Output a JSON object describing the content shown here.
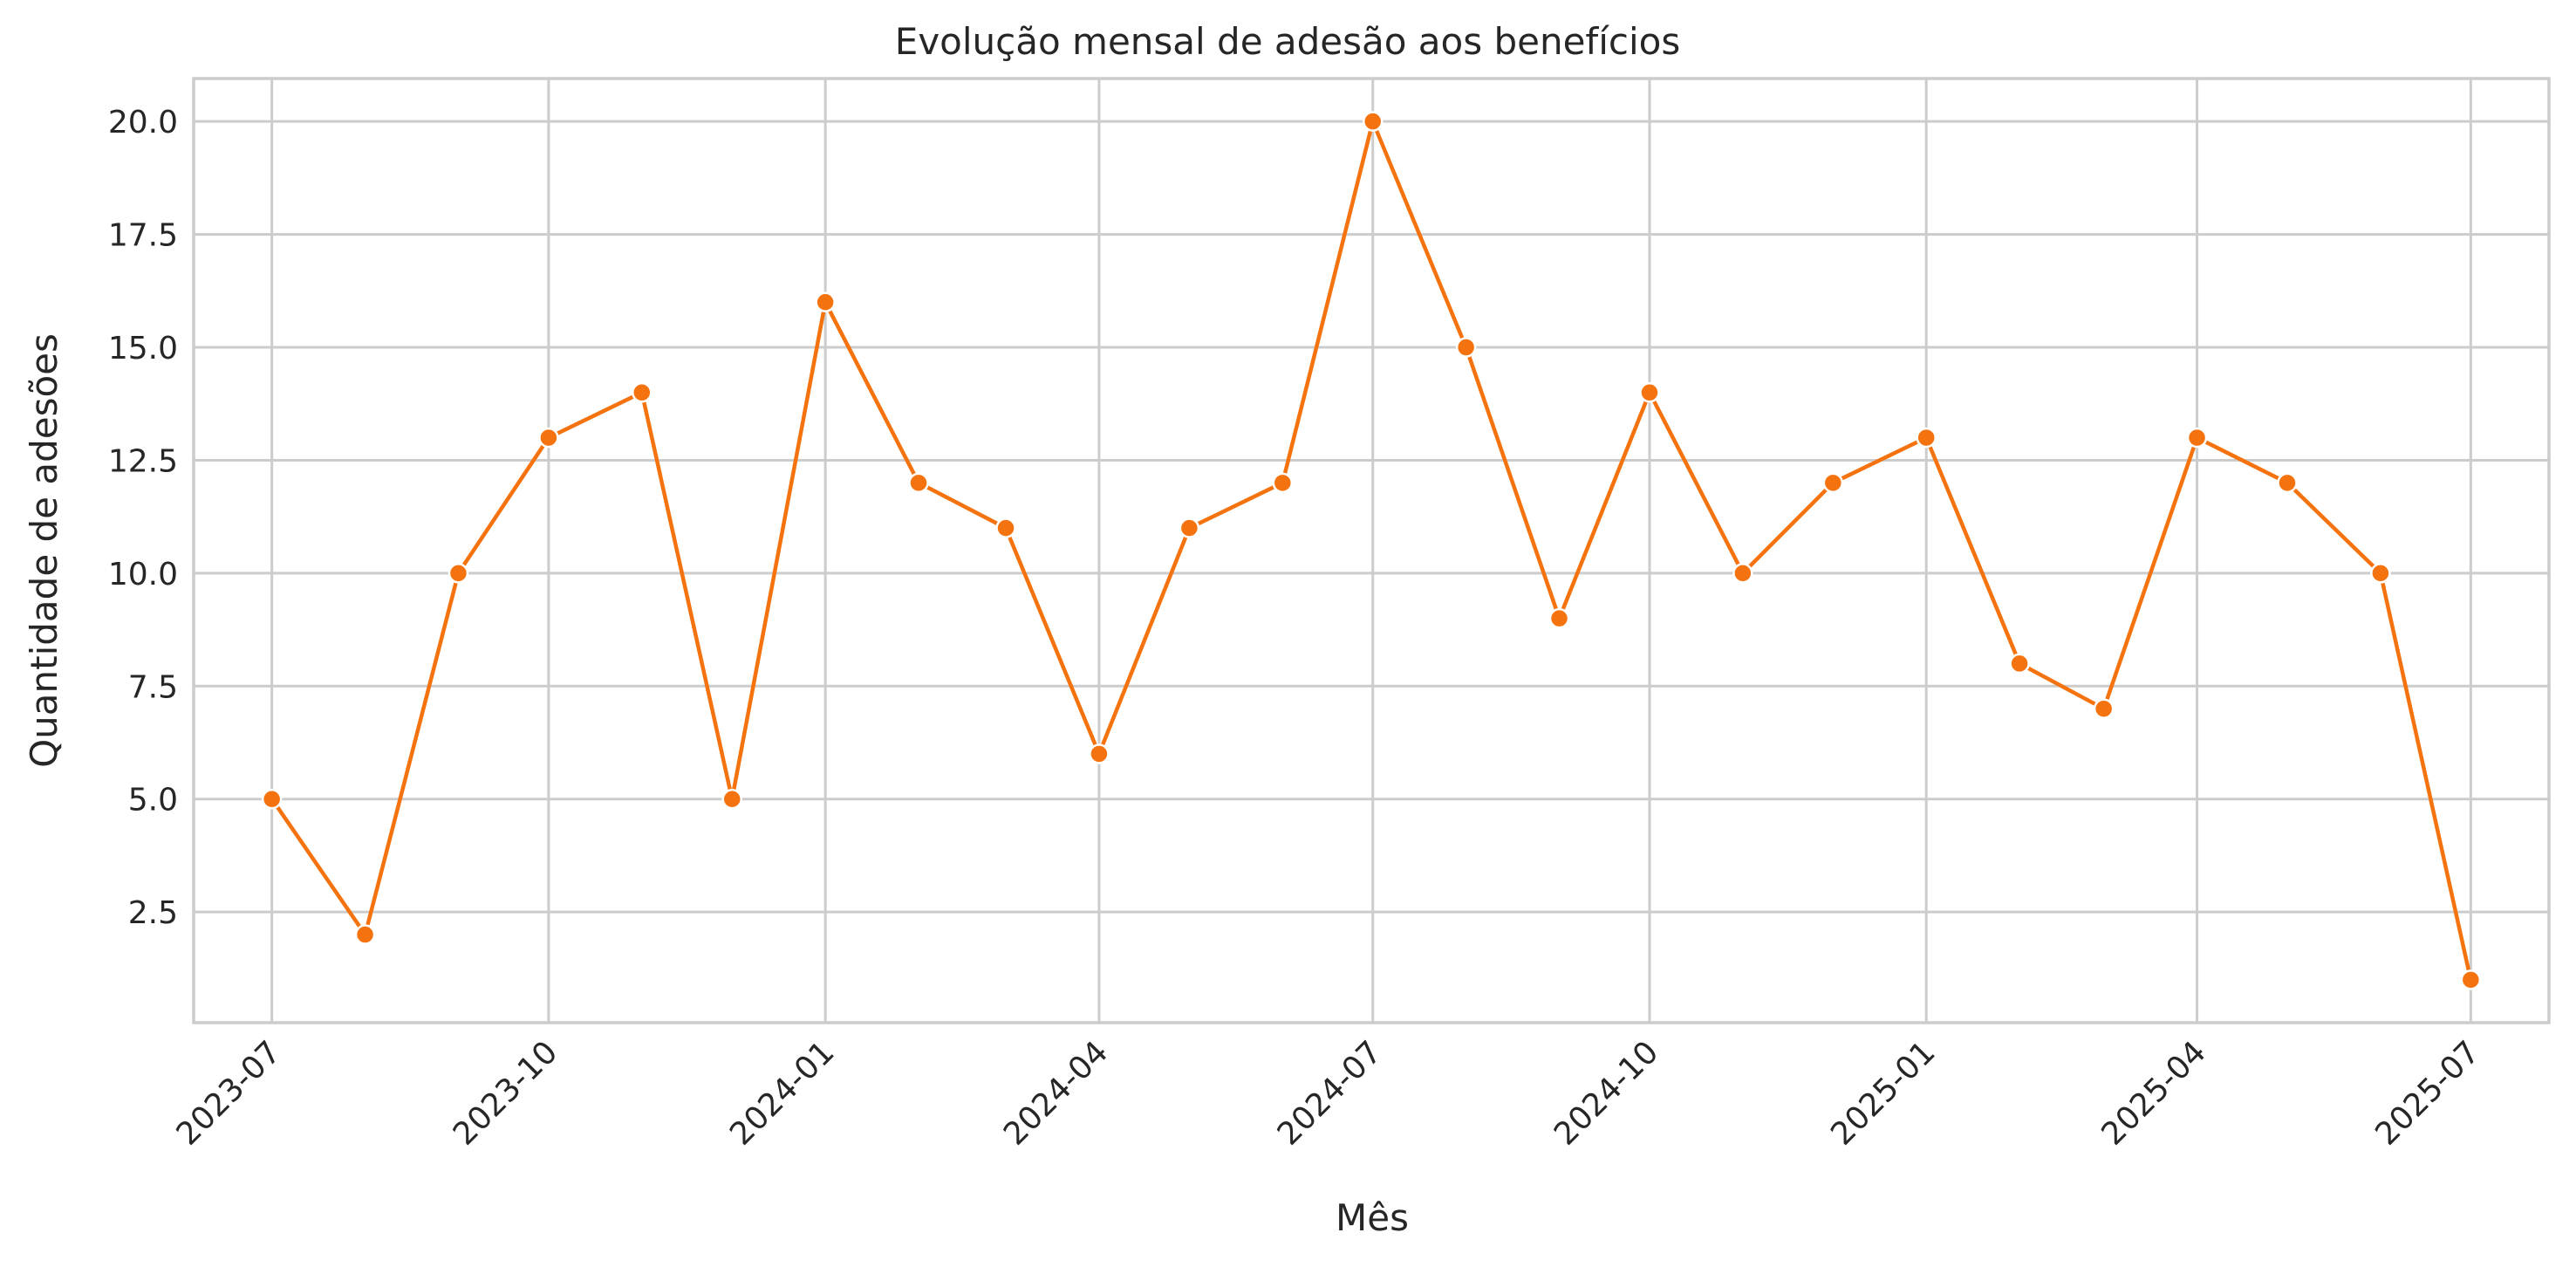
{
  "chart_data": {
    "type": "line",
    "title": "Evolução mensal de adesão aos benefícios",
    "xlabel": "Mês",
    "ylabel": "Quantidade de adesões",
    "x": [
      "2023-07",
      "2023-08",
      "2023-09",
      "2023-10",
      "2023-11",
      "2023-12",
      "2024-01",
      "2024-02",
      "2024-03",
      "2024-04",
      "2024-05",
      "2024-06",
      "2024-07",
      "2024-08",
      "2024-09",
      "2024-10",
      "2024-11",
      "2024-12",
      "2025-01",
      "2025-02",
      "2025-03",
      "2025-04",
      "2025-05",
      "2025-06",
      "2025-07"
    ],
    "series": [
      {
        "values": [
          5,
          2,
          10,
          13,
          14,
          5,
          16,
          12,
          11,
          6,
          11,
          12,
          20,
          15,
          9,
          14,
          10,
          12,
          13,
          8,
          7,
          13,
          12,
          10,
          1
        ]
      }
    ],
    "x_ticks": [
      "2023-07",
      "2023-10",
      "2024-01",
      "2024-04",
      "2024-07",
      "2024-10",
      "2025-01",
      "2025-04",
      "2025-07"
    ],
    "y_ticks": [
      "2.5",
      "5.0",
      "7.5",
      "10.0",
      "12.5",
      "15.0",
      "17.5",
      "20.0"
    ],
    "y_tick_values": [
      2.5,
      5,
      7.5,
      10,
      12.5,
      15,
      17.5,
      20
    ],
    "ylim": [
      0.05,
      20.95
    ],
    "xlim": [
      "2023-06-05",
      "2025-07-27"
    ],
    "grid": true,
    "color": "#f5730f"
  }
}
